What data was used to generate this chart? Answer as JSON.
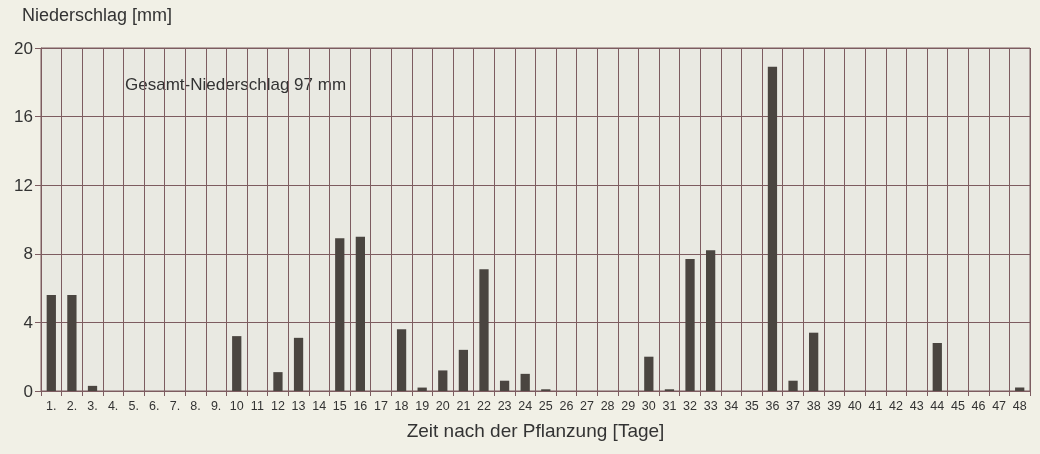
{
  "chart_data": {
    "type": "bar",
    "ylabel": "Niederschlag [mm]",
    "xlabel": "Zeit nach der Pflanzung [Tage]",
    "annotations": [
      "Gesamt-Niederschlag 97 mm"
    ],
    "categories": [
      "1.",
      "2.",
      "3.",
      "4.",
      "5.",
      "6.",
      "7.",
      "8.",
      "9.",
      "10",
      "11",
      "12",
      "13",
      "14",
      "15",
      "16",
      "17",
      "18",
      "19",
      "20",
      "21",
      "22",
      "23",
      "24",
      "25",
      "26",
      "27",
      "28",
      "29",
      "30",
      "31",
      "32",
      "33",
      "34",
      "35",
      "36",
      "37",
      "38",
      "39",
      "40",
      "41",
      "42",
      "43",
      "44",
      "45",
      "46",
      "47",
      "48"
    ],
    "values": [
      5.6,
      5.6,
      0.3,
      0,
      0,
      0,
      0,
      0,
      0,
      3.2,
      0,
      1.1,
      3.1,
      0,
      8.9,
      9.0,
      0,
      3.6,
      0.2,
      1.2,
      2.4,
      7.1,
      0.6,
      1.0,
      0.1,
      0,
      0,
      0,
      0,
      2.0,
      0.1,
      7.7,
      8.2,
      0,
      0,
      18.9,
      0.6,
      3.4,
      0,
      0,
      0,
      0,
      0,
      2.8,
      0,
      0,
      0,
      0.2
    ],
    "color": "#4a4540",
    "ylim": [
      0,
      20
    ],
    "yticks": [
      0,
      4,
      8,
      12,
      16,
      20
    ],
    "grid": true
  }
}
